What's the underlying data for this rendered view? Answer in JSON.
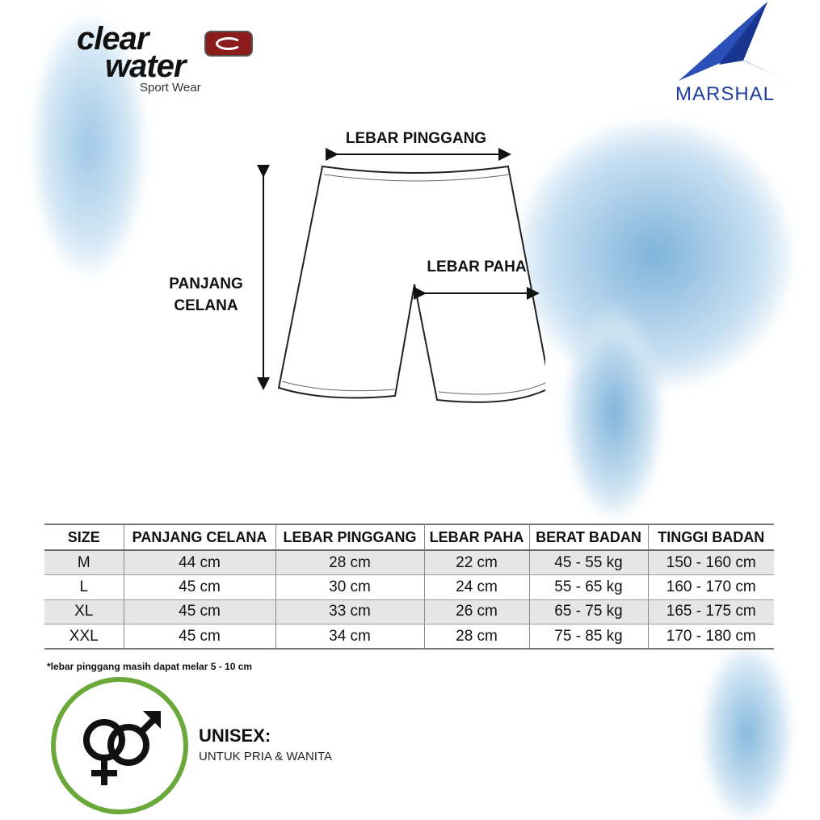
{
  "brand": {
    "logo_text": "clear water",
    "tagline": "Sport Wear",
    "partner_logo": "MARSHAL",
    "accent": "#8b1c1c",
    "partner_color": "#1f3fa0"
  },
  "diagram": {
    "waist": "LEBAR PINGGANG",
    "thigh": "LEBAR PAHA",
    "length_line1": "PANJANG",
    "length_line2": "CELANA"
  },
  "table": {
    "headers": [
      "SIZE",
      "PANJANG CELANA",
      "LEBAR PINGGANG",
      "LEBAR PAHA",
      "BERAT BADAN",
      "TINGGI BADAN"
    ],
    "rows": [
      [
        "M",
        "44 cm",
        "28 cm",
        "22 cm",
        "45 - 55 kg",
        "150 - 160 cm"
      ],
      [
        "L",
        "45 cm",
        "30 cm",
        "24 cm",
        "55 - 65 kg",
        "160 - 170 cm"
      ],
      [
        "XL",
        "45 cm",
        "33 cm",
        "26 cm",
        "65 - 75 kg",
        "165 - 175 cm"
      ],
      [
        "XXL",
        "45 cm",
        "34 cm",
        "28 cm",
        "75 - 85 kg",
        "170 - 180 cm"
      ]
    ]
  },
  "note": "*lebar pinggang masih dapat melar 5 - 10 cm",
  "unisex": {
    "title": "UNISEX:",
    "subtitle": "UNTUK PRIA & WANITA",
    "icon": "male-female-icon",
    "ring_color": "#6aa83a"
  }
}
